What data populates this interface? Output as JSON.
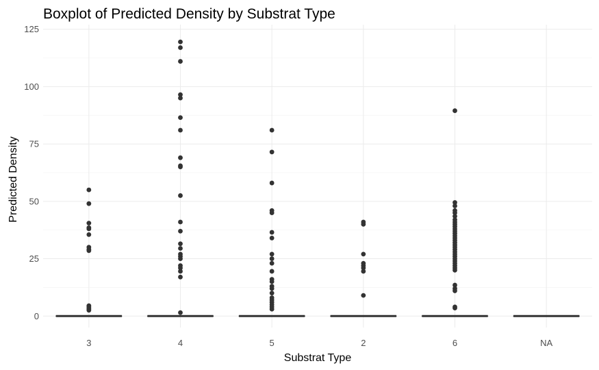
{
  "chart_data": {
    "type": "boxplot",
    "title": "Boxplot of Predicted Density by Substrat Type",
    "xlabel": "Substrat Type",
    "ylabel": "Predicted Density",
    "ylim": [
      -5,
      127
    ],
    "yticks": [
      0,
      25,
      50,
      75,
      100,
      125
    ],
    "grid": true,
    "categories": [
      "3",
      "4",
      "5",
      "2",
      "6",
      "NA"
    ],
    "boxes": [
      {
        "category": "3",
        "median": 0,
        "q1": 0,
        "q3": 0,
        "outliers": [
          55,
          49,
          40.5,
          38.5,
          38,
          35.5,
          30,
          29,
          28.5,
          4.5,
          4,
          3.5,
          3,
          2.5
        ]
      },
      {
        "category": "4",
        "median": 0,
        "q1": 0,
        "q3": 0,
        "outliers": [
          119.5,
          117,
          111,
          96.5,
          95,
          86.5,
          81,
          69,
          65.5,
          65,
          52.5,
          41,
          37,
          31.5,
          29.5,
          27,
          26,
          25,
          22,
          21,
          19.5,
          17,
          1.5
        ]
      },
      {
        "category": "5",
        "median": 0,
        "q1": 0,
        "q3": 0,
        "outliers": [
          81,
          71.5,
          58,
          46,
          45,
          36.5,
          34,
          27,
          25,
          23,
          19.5,
          16,
          15,
          13,
          12,
          10,
          8,
          7,
          6,
          5,
          4,
          3
        ]
      },
      {
        "category": "2",
        "median": 0,
        "q1": 0,
        "q3": 0,
        "outliers": [
          41,
          40,
          27,
          23,
          22,
          21,
          19.5,
          9
        ]
      },
      {
        "category": "6",
        "median": 0,
        "q1": 0,
        "q3": 0,
        "outliers": [
          89.5,
          49.5,
          48,
          46,
          45,
          43.5,
          42,
          41,
          40,
          39,
          38,
          37,
          36,
          35,
          34,
          33,
          32,
          31,
          30,
          29,
          28,
          27,
          26,
          25,
          24,
          23,
          22,
          21,
          20,
          13.5,
          12,
          11,
          4,
          3.5
        ]
      },
      {
        "category": "NA",
        "median": 0,
        "q1": 0,
        "q3": 0,
        "outliers": []
      }
    ]
  }
}
